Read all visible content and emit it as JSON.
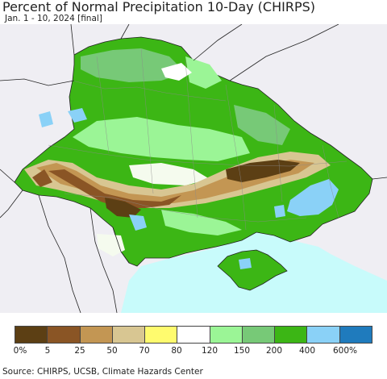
{
  "title": "Percent of Normal Precipitation 10-Day (CHIRPS)",
  "subtitle": "Jan. 1 - 10, 2024 [final]",
  "map": {
    "sea_color": "#c8fbfb",
    "land_outside_color": "#efeef3",
    "border_color": "#222222"
  },
  "legend": {
    "colors": [
      "#5c3f14",
      "#8a5525",
      "#c39653",
      "#d8c692",
      "#fffb6e",
      "#ffffff",
      "#9bf596",
      "#77c977",
      "#3cb615",
      "#8ad1f7",
      "#1f7bbd"
    ],
    "labels": [
      "0%",
      "5",
      "25",
      "50",
      "70",
      "80",
      "120",
      "150",
      "200",
      "400",
      "600%"
    ]
  },
  "source": "Source: CHIRPS, UCSB, Climate Hazards Center"
}
